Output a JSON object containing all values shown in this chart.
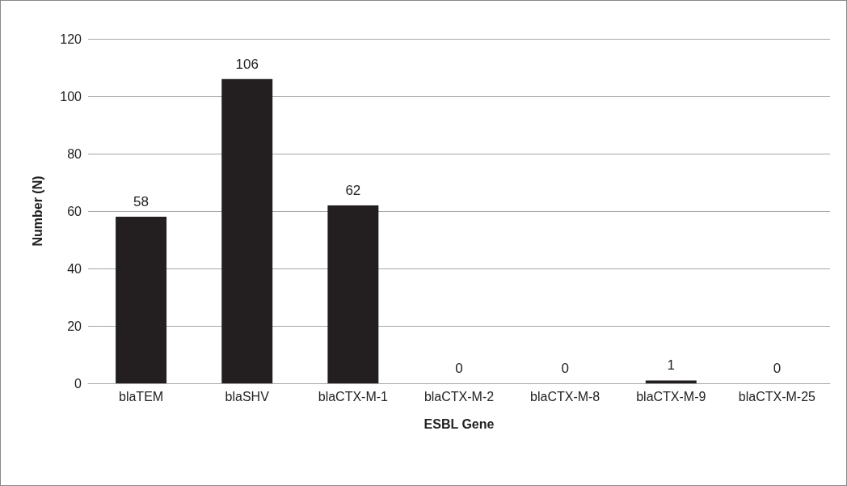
{
  "chart_data": {
    "type": "bar",
    "xlabel": "ESBL Gene",
    "ylabel": "Number (N)",
    "categories": [
      "blaTEM",
      "blaSHV",
      "blaCTX-M-1",
      "blaCTX-M-2",
      "blaCTX-M-8",
      "blaCTX-M-9",
      "blaCTX-M-25"
    ],
    "values": [
      58,
      106,
      62,
      0,
      0,
      1,
      0
    ],
    "color": "#231f20",
    "ylim": [
      0,
      120
    ],
    "yticks": [
      0,
      20,
      40,
      60,
      80,
      100,
      120
    ],
    "grid": "y",
    "data_labels": true
  }
}
